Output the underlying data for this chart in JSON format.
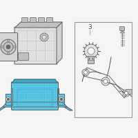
{
  "bg_color": "#f5f5f5",
  "line_color": "#888888",
  "dark_line": "#666666",
  "cyan_fill": "#5bc8e8",
  "cyan_dark": "#3aa8c8",
  "gray_fill": "#e0e0e0",
  "gray_dark": "#c0c0c0",
  "white_fill": "#ffffff",
  "box_border": "#999999",
  "figsize": [
    2.0,
    2.0
  ],
  "dpi": 100
}
